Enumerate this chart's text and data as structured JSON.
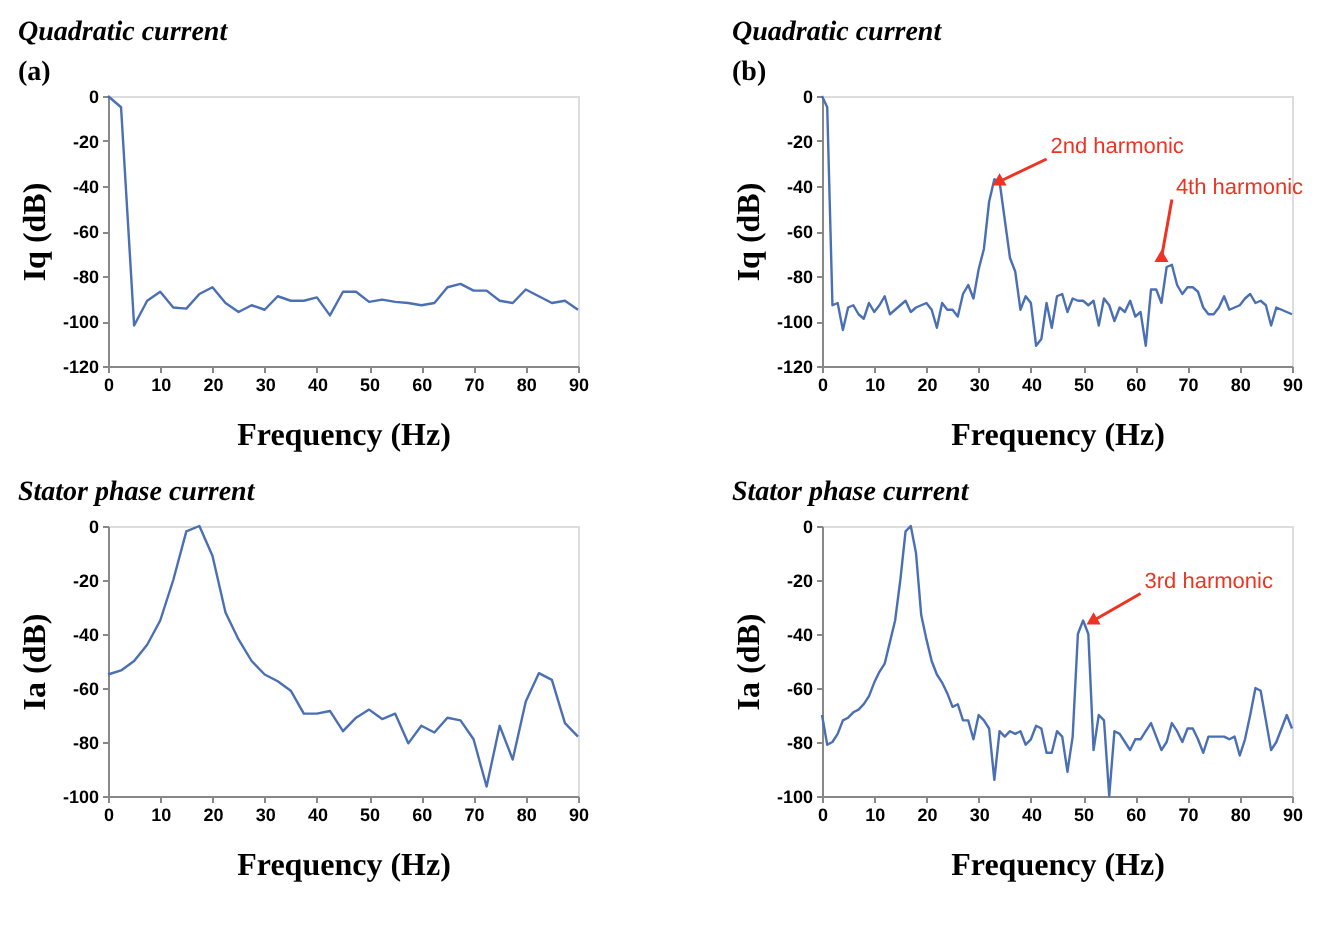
{
  "chart_data": [
    {
      "type": "line",
      "title": "Quadratic current",
      "xlabel": "Frequency (Hz)",
      "ylabel": "Iq (dB)",
      "annotations": [
        "(a)"
      ],
      "grid": false,
      "legend": false,
      "xlim": [
        0,
        90
      ],
      "xticks": [
        0,
        10,
        20,
        30,
        40,
        50,
        60,
        70,
        80,
        90
      ],
      "ylim": [
        -120,
        0
      ],
      "yticks": [
        -120,
        -100,
        -80,
        -60,
        -40,
        -20,
        0
      ],
      "series": [
        {
          "color": "#4a6fb5",
          "x": [
            0,
            2.5,
            5,
            7.5,
            10,
            12.5,
            15,
            17.5,
            20,
            22.5,
            25,
            27.5,
            30,
            32.5,
            35,
            37.5,
            40,
            42.5,
            45,
            47.5,
            50,
            52.5,
            55,
            57.5,
            60,
            62.5,
            65,
            67.5,
            70,
            72.5,
            75,
            77.5,
            80,
            82.5,
            85,
            87.5,
            90
          ],
          "values": [
            0,
            -5,
            -102,
            -91,
            -87,
            -94,
            -94.5,
            -88,
            -85,
            -92,
            -96,
            -93,
            -95,
            -89,
            -91,
            -91,
            -89.5,
            -97.5,
            -87,
            -87,
            -91.5,
            -90.5,
            -91.5,
            -92,
            -93,
            -92,
            -85,
            -83.5,
            -86.5,
            -86.5,
            -91,
            -92,
            -86,
            -89,
            -92,
            -91,
            -95
          ]
        }
      ]
    },
    {
      "type": "line",
      "title": "Quadratic current",
      "xlabel": "Frequency (Hz)",
      "ylabel": "Iq (dB)",
      "grid": false,
      "legend": false,
      "xlim": [
        0,
        90
      ],
      "xticks": [
        0,
        10,
        20,
        30,
        40,
        50,
        60,
        70,
        80,
        90
      ],
      "ylim": [
        -120,
        0
      ],
      "yticks": [
        -120,
        -100,
        -80,
        -60,
        -40,
        -20,
        0
      ],
      "annotations": [
        "(b)",
        {
          "text": "2nd harmonic",
          "x": 34,
          "y": -38
        },
        {
          "text": "4th harmonic",
          "x": 65,
          "y": -72
        }
      ],
      "series": [
        {
          "color": "#4a6fb5",
          "x": [
            0,
            1,
            2,
            3,
            4,
            5,
            6,
            7,
            8,
            9,
            10,
            11,
            12,
            13,
            14,
            15,
            16,
            17,
            18,
            19,
            20,
            21,
            22,
            23,
            24,
            25,
            26,
            27,
            28,
            29,
            30,
            31,
            32,
            33,
            34,
            35,
            36,
            37,
            38,
            39,
            40,
            41,
            42,
            43,
            44,
            45,
            46,
            47,
            48,
            49,
            50,
            51,
            52,
            53,
            54,
            55,
            56,
            57,
            58,
            59,
            60,
            61,
            62,
            63,
            64,
            65,
            66,
            67,
            68,
            69,
            70,
            71,
            72,
            73,
            74,
            75,
            76,
            77,
            78,
            79,
            80,
            81,
            82,
            83,
            84,
            85,
            86,
            87,
            88,
            89,
            90
          ],
          "values": [
            0,
            -5,
            -93,
            -92,
            -104,
            -94,
            -93,
            -97,
            -99,
            -92,
            -96,
            -93,
            -89,
            -97,
            -95,
            -93,
            -91,
            -96,
            -94,
            -93,
            -92,
            -95,
            -103,
            -92,
            -95,
            -95,
            -98,
            -88,
            -84,
            -90,
            -77,
            -68,
            -47,
            -37,
            -38,
            -55,
            -72,
            -78,
            -95,
            -89,
            -92,
            -111,
            -108,
            -92,
            -103,
            -89,
            -88,
            -96,
            -90,
            -91,
            -91,
            -93,
            -91,
            -102,
            -90,
            -93,
            -100,
            -94,
            -96,
            -91,
            -98,
            -96,
            -111,
            -86,
            -86,
            -92,
            -76,
            -75,
            -84,
            -88,
            -85,
            -85,
            -87,
            -94,
            -97,
            -97,
            -94,
            -89,
            -95,
            -94,
            -93,
            -90,
            -88,
            -92,
            -91,
            -93,
            -102,
            -94,
            -95,
            -96,
            -97
          ]
        }
      ]
    },
    {
      "type": "line",
      "title": "Stator phase current",
      "xlabel": "Frequency (Hz)",
      "ylabel": "Ia (dB)",
      "grid": false,
      "legend": false,
      "xlim": [
        0,
        90
      ],
      "xticks": [
        0,
        10,
        20,
        30,
        40,
        50,
        60,
        70,
        80,
        90
      ],
      "ylim": [
        -100,
        0
      ],
      "yticks": [
        -100,
        -80,
        -60,
        -40,
        -20,
        0
      ],
      "series": [
        {
          "color": "#4a6fb5",
          "x": [
            0,
            2.5,
            5,
            7.5,
            10,
            12.5,
            15,
            17.5,
            20,
            22.5,
            25,
            27.5,
            30,
            32.5,
            35,
            37.5,
            40,
            42.5,
            45,
            47.5,
            50,
            52.5,
            55,
            57.5,
            60,
            62.5,
            65,
            67.5,
            70,
            72.5,
            75,
            77.5,
            80,
            82.5,
            85,
            87.5,
            90
          ],
          "values": [
            -55,
            -53.5,
            -50,
            -44,
            -35,
            -20,
            -2,
            0,
            -11,
            -32,
            -42,
            -50,
            -55,
            -57.5,
            -61,
            -69.5,
            -69.5,
            -68.5,
            -76,
            -71,
            -68,
            -71.5,
            -69.5,
            -80.5,
            -74,
            -76.5,
            -71,
            -72,
            -79,
            -96.5,
            -74,
            -86.5,
            -65,
            -54.5,
            -57,
            -73,
            -78
          ]
        }
      ]
    },
    {
      "type": "line",
      "title": "Stator phase current",
      "xlabel": "Frequency (Hz)",
      "ylabel": "Ia (dB)",
      "grid": false,
      "legend": false,
      "xlim": [
        0,
        90
      ],
      "xticks": [
        0,
        10,
        20,
        30,
        40,
        50,
        60,
        70,
        80,
        90
      ],
      "ylim": [
        -100,
        0
      ],
      "yticks": [
        -100,
        -80,
        -60,
        -40,
        -20,
        0
      ],
      "annotations": [
        {
          "text": "3rd harmonic",
          "x": 52,
          "y": -35
        }
      ],
      "series": [
        {
          "color": "#4a6fb5",
          "x": [
            0,
            1,
            2,
            3,
            4,
            5,
            6,
            7,
            8,
            9,
            10,
            11,
            12,
            13,
            14,
            15,
            16,
            17,
            18,
            19,
            20,
            21,
            22,
            23,
            24,
            25,
            26,
            27,
            28,
            29,
            30,
            31,
            32,
            33,
            34,
            35,
            36,
            37,
            38,
            39,
            40,
            41,
            42,
            43,
            44,
            45,
            46,
            47,
            48,
            49,
            50,
            51,
            52,
            53,
            54,
            55,
            56,
            57,
            58,
            59,
            60,
            61,
            62,
            63,
            64,
            65,
            66,
            67,
            68,
            69,
            70,
            71,
            72,
            73,
            74,
            75,
            76,
            77,
            78,
            79,
            80,
            81,
            82,
            83,
            84,
            85,
            86,
            87,
            88,
            89,
            90
          ],
          "values": [
            -70,
            -81,
            -80,
            -77,
            -72,
            -71,
            -69,
            -68,
            -66,
            -63,
            -58,
            -54,
            -51,
            -43,
            -35,
            -20,
            -2,
            0,
            -10,
            -33,
            -42,
            -50,
            -55,
            -58,
            -62,
            -67,
            -66,
            -72,
            -72,
            -79,
            -70,
            -72,
            -75,
            -94,
            -76,
            -78,
            -76,
            -77,
            -76,
            -81,
            -79,
            -74,
            -75,
            -84,
            -84,
            -76,
            -78,
            -91,
            -78,
            -40,
            -35,
            -40,
            -83,
            -70,
            -72,
            -100,
            -76,
            -77,
            -80,
            -83,
            -79,
            -79,
            -76,
            -73,
            -78,
            -83,
            -80,
            -73,
            -76,
            -80,
            -75,
            -75,
            -79,
            -84,
            -78,
            -78,
            -78,
            -78,
            -79,
            -78,
            -85,
            -79,
            -70,
            -60,
            -61,
            -72,
            -83,
            -80,
            -75,
            -70,
            -75
          ]
        }
      ]
    }
  ]
}
